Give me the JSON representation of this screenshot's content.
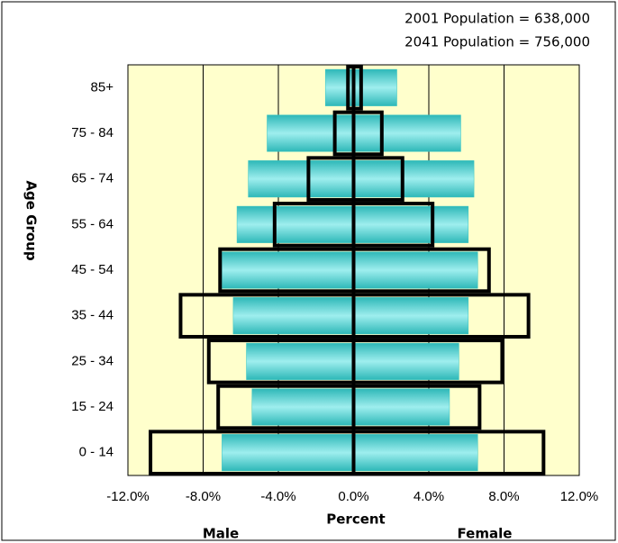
{
  "chart_data": {
    "type": "pyramid",
    "annotations": [
      "2001 Population = 638,000",
      "2041 Population = 756,000"
    ],
    "x_label": "Percent",
    "y_label": "Age Group",
    "side_labels": [
      "Male",
      "Female"
    ],
    "categories": [
      "0 - 14",
      "15 - 24",
      "25 - 34",
      "35 - 44",
      "45 - 54",
      "55 - 64",
      "65 - 74",
      "75 - 84",
      "85+"
    ],
    "series": [
      {
        "color": "#33c4c4",
        "style": "filled",
        "male": [
          -7.0,
          -5.4,
          -5.7,
          -6.4,
          -7.0,
          -6.2,
          -5.6,
          -4.6,
          -1.5
        ],
        "female": [
          6.6,
          5.1,
          5.6,
          6.1,
          6.6,
          6.1,
          6.4,
          5.7,
          2.3
        ]
      },
      {
        "color": "#000000",
        "style": "outline",
        "male": [
          -10.8,
          -7.2,
          -7.7,
          -9.2,
          -7.1,
          -4.2,
          -2.4,
          -1.0,
          -0.3
        ],
        "female": [
          10.1,
          6.7,
          7.9,
          9.3,
          7.2,
          4.2,
          2.6,
          1.5,
          0.4
        ]
      }
    ],
    "xlim": [
      -12,
      12
    ],
    "xticks": [
      {
        "value": -12,
        "label": "-12.0%"
      },
      {
        "value": -8,
        "label": "-8.0%"
      },
      {
        "value": -4,
        "label": "-4.0%"
      },
      {
        "value": 0,
        "label": "0.0%"
      },
      {
        "value": 4,
        "label": "4.0%"
      },
      {
        "value": 8,
        "label": "8.0%"
      },
      {
        "value": 12,
        "label": "12.0%"
      }
    ],
    "grid": true,
    "plot_background": "#ffffcc"
  }
}
